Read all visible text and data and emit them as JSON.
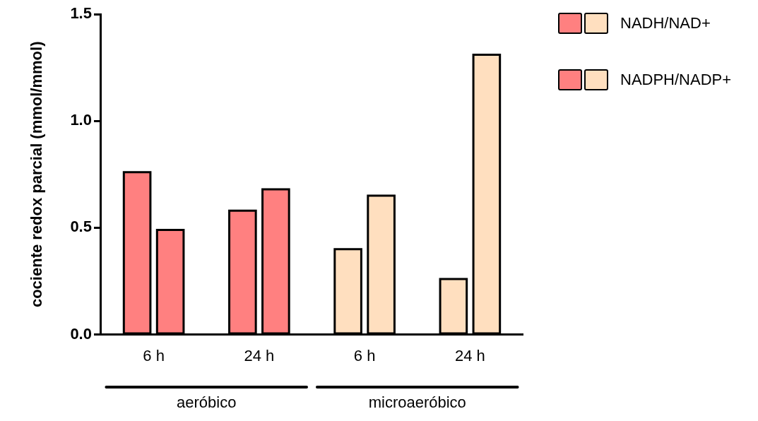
{
  "chart_data": {
    "type": "bar",
    "ylabel": "cociente redox parcial (mmol/mmol)",
    "categories": [
      "6 h",
      "24 h",
      "6 h",
      "24 h"
    ],
    "series": [
      {
        "name": "NADH/NAD+",
        "colors": [
          "#ff8080",
          "#ff8080",
          "#ffdfbf",
          "#ffdfbf"
        ],
        "values": [
          0.76,
          0.58,
          0.4,
          0.26
        ]
      },
      {
        "name": "NADPH/NADP+",
        "colors": [
          "#ff8080",
          "#ff8080",
          "#ffdfbf",
          "#ffdfbf"
        ],
        "values": [
          0.49,
          0.68,
          0.65,
          1.31
        ]
      }
    ],
    "ylim": [
      0,
      1.5
    ],
    "yticks": [
      {
        "value": 0,
        "label": "0.0"
      },
      {
        "value": 0.5,
        "label": "0.5"
      },
      {
        "value": 1,
        "label": "1.0"
      },
      {
        "value": 1.5,
        "label": "1.5"
      }
    ],
    "annotations": [
      "aeróbico",
      "microaeróbico"
    ],
    "grid": false,
    "legend": "top right"
  }
}
